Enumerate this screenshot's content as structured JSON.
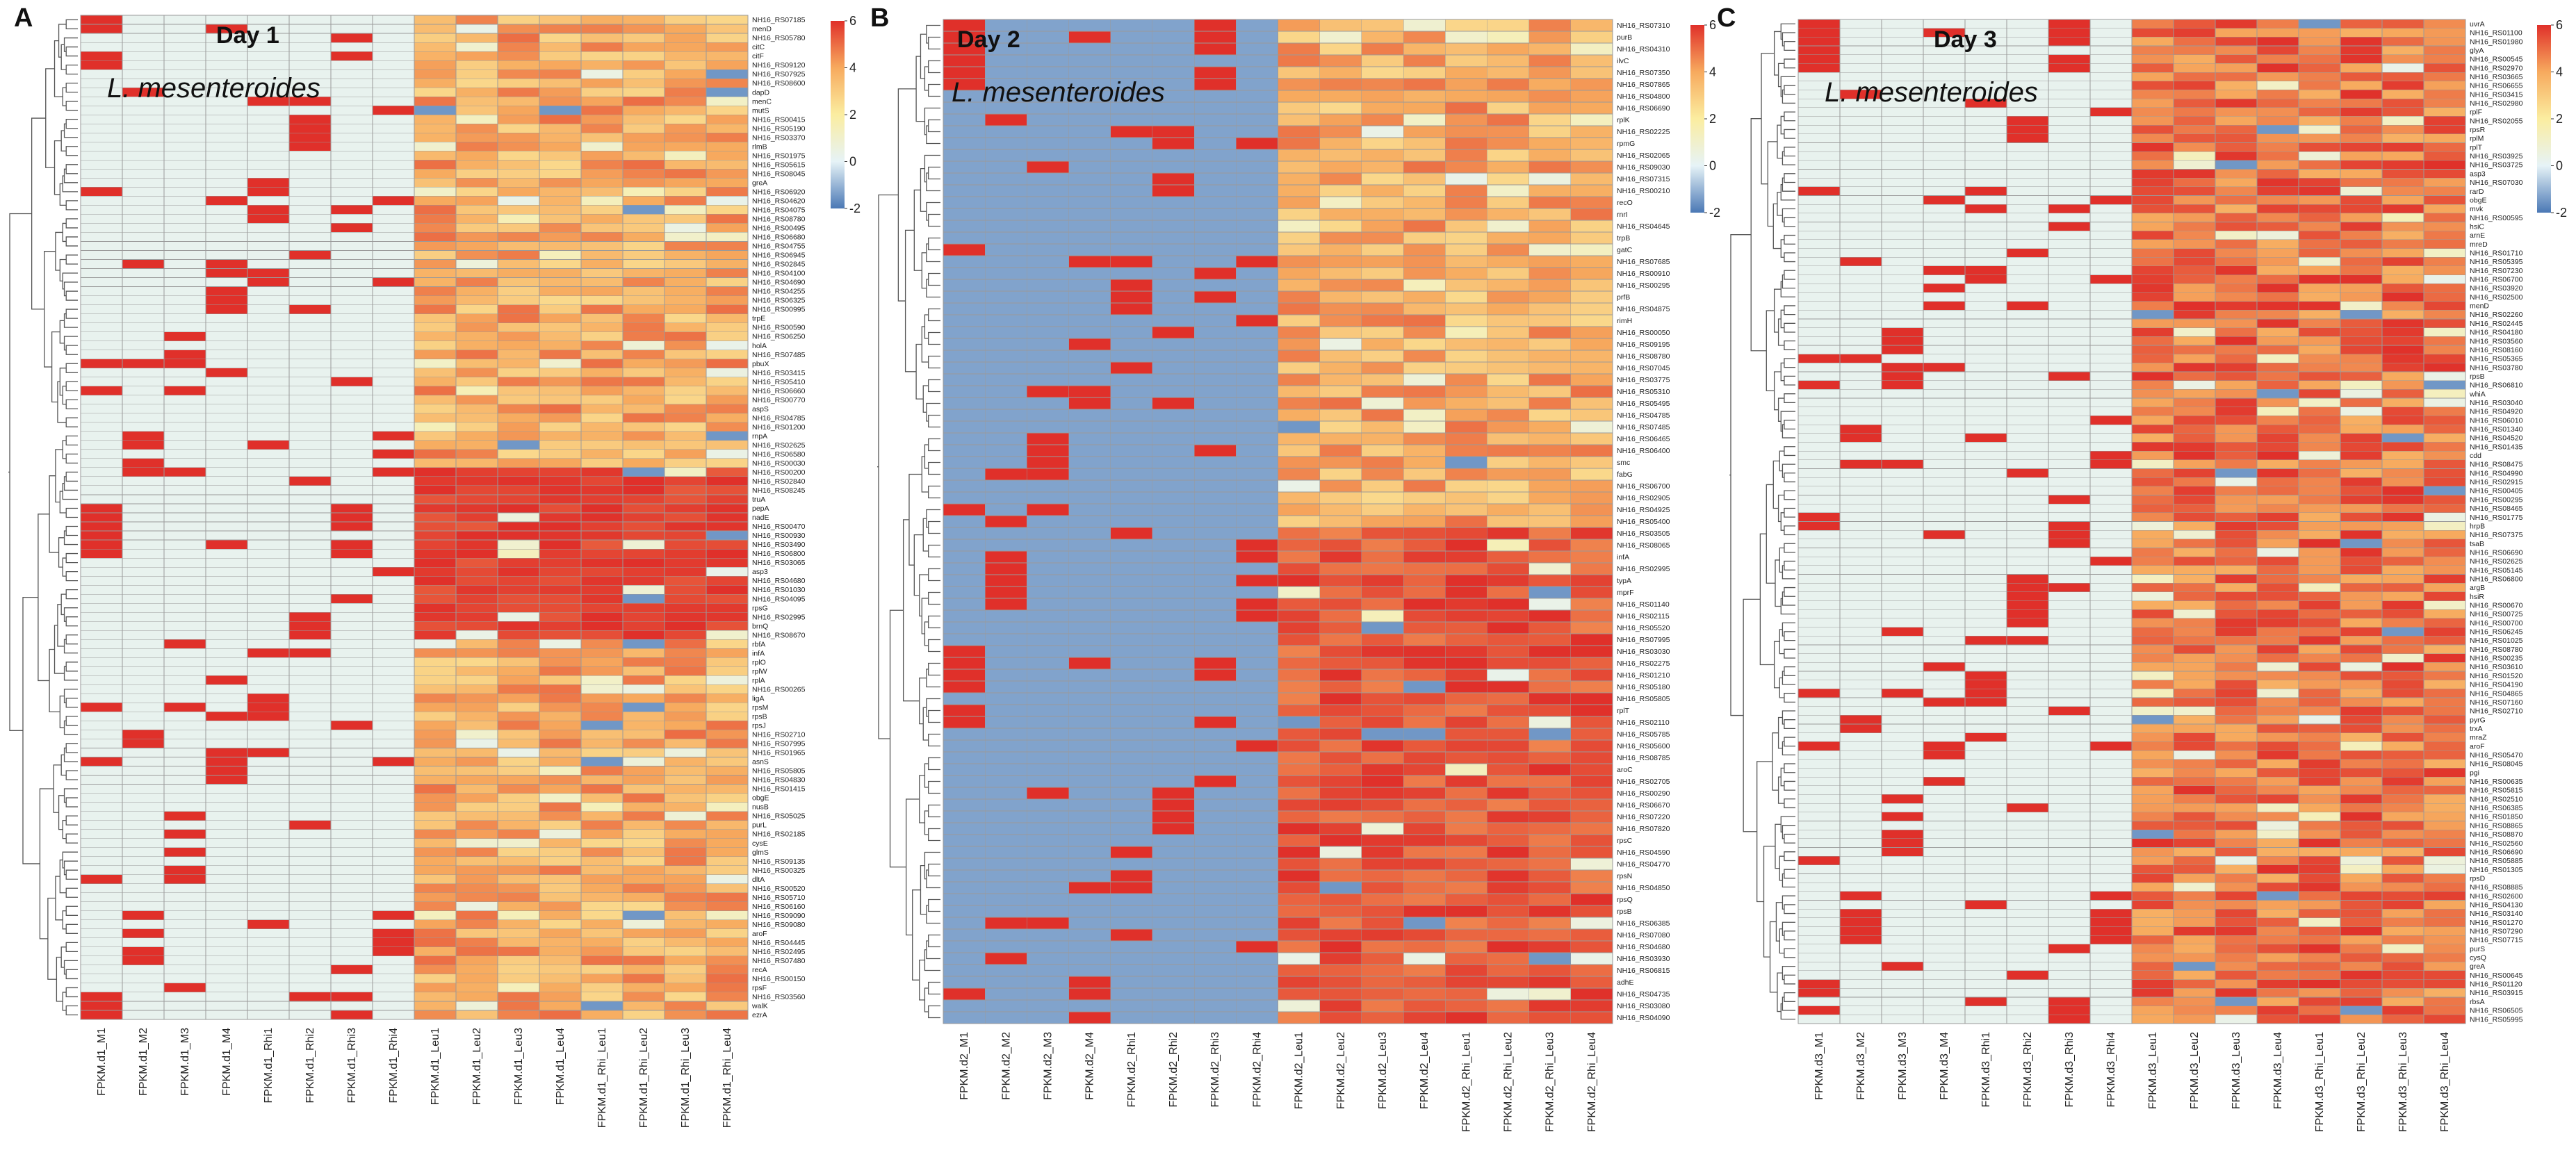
{
  "chart_data": [
    {
      "type": "heatmap",
      "panel": "A",
      "title": "Day 1",
      "species": "L. mesenteroides",
      "color_scale": {
        "min": -2,
        "max": 6,
        "ticks": [
          6,
          4,
          2,
          0,
          -2
        ],
        "colors": [
          "#4a78b5",
          "#e6f3f7",
          "#fbeda0",
          "#f7aa5e",
          "#e0302a"
        ]
      },
      "columns": [
        "FPKM.d1_M1",
        "FPKM.d1_M2",
        "FPKM.d1_M3",
        "FPKM.d1_M4",
        "FPKM.d1_Rhi1",
        "FPKM.d1_Rhi2",
        "FPKM.d1_Rhi3",
        "FPKM.d1_Rhi4",
        "FPKM.d1_Leu1",
        "FPKM.d1_Leu2",
        "FPKM.d1_Leu3",
        "FPKM.d1_Leu4",
        "FPKM.d1_Rhi_Leu1",
        "FPKM.d1_Rhi_Leu2",
        "FPKM.d1_Rhi_Leu3",
        "FPKM.d1_Rhi_Leu4"
      ],
      "rows": [
        "NH16_RS07185",
        "menD",
        "NH16_RS05780",
        "citC",
        "citF",
        "NH16_RS09120",
        "NH16_RS07925",
        "NH16_RS08600",
        "dapD",
        "menC",
        "mutS",
        "NH16_RS00415",
        "NH16_RS05190",
        "NH16_RS03370",
        "rlmB",
        "NH16_RS01975",
        "NH16_RS05615",
        "NH16_RS08045",
        "greA",
        "NH16_RS06920",
        "NH16_RS04620",
        "NH16_RS04075",
        "NH16_RS08780",
        "NH16_RS00495",
        "NH16_RS06680",
        "NH16_RS04755",
        "NH16_RS06945",
        "NH16_RS02845",
        "NH16_RS04100",
        "NH16_RS04690",
        "NH16_RS04255",
        "NH16_RS06325",
        "NH16_RS00995",
        "trpE",
        "NH16_RS00590",
        "NH16_RS06250",
        "holA",
        "NH16_RS07485",
        "pbuX",
        "NH16_RS03415",
        "NH16_RS05410",
        "NH16_RS06660",
        "NH16_RS00770",
        "aspS",
        "NH16_RS04785",
        "NH16_RS01200",
        "rnpA",
        "NH16_RS02625",
        "NH16_RS06580",
        "NH16_RS00030",
        "NH16_RS00200",
        "NH16_RS02840",
        "NH16_RS08245",
        "truA",
        "pepA",
        "nadE",
        "NH16_RS00470",
        "NH16_RS00930",
        "NH16_RS03490",
        "NH16_RS06800",
        "NH16_RS03065",
        "asp3",
        "NH16_RS04680",
        "NH16_RS01030",
        "NH16_RS04095",
        "rpsG",
        "NH16_RS02995",
        "brnQ",
        "NH16_RS08670",
        "rbfA",
        "infA",
        "rplO",
        "rplW",
        "rplA",
        "NH16_RS00265",
        "ligA",
        "rpsM",
        "rpsB",
        "rpsJ",
        "NH16_RS02710",
        "NH16_RS07995",
        "NH16_RS01965",
        "asnS",
        "NH16_RS05805",
        "NH16_RS04830",
        "NH16_RS01415",
        "obgE",
        "nusB",
        "NH16_RS05025",
        "purL",
        "NH16_RS02185",
        "cysE",
        "glmS",
        "NH16_RS09135",
        "NH16_RS00325",
        "dltA",
        "NH16_RS00520",
        "NH16_RS05710",
        "NH16_RS06160",
        "NH16_RS09090",
        "NH16_RS09080",
        "aroF",
        "NH16_RS04445",
        "NH16_RS02495",
        "NH16_RS07480",
        "recA",
        "NH16_RS00150",
        "rpsF",
        "NH16_RS03560",
        "walK",
        "ezrA"
      ]
    },
    {
      "type": "heatmap",
      "panel": "B",
      "title": "Day 2",
      "species": "L. mesenteroides",
      "color_scale": {
        "min": -2,
        "max": 6,
        "ticks": [
          6,
          4,
          2,
          0,
          -2
        ],
        "colors": [
          "#4a78b5",
          "#e6f3f7",
          "#fbeda0",
          "#f7aa5e",
          "#e0302a"
        ]
      },
      "columns": [
        "FPKM.d2_M1",
        "FPKM.d2_M2",
        "FPKM.d2_M3",
        "FPKM.d2_M4",
        "FPKM.d2_Rhi1",
        "FPKM.d2_Rhi2",
        "FPKM.d2_Rhi3",
        "FPKM.d2_Rhi4",
        "FPKM.d2_Leu1",
        "FPKM.d2_Leu2",
        "FPKM.d2_Leu3",
        "FPKM.d2_Leu4",
        "FPKM.d2_Rhi_Leu1",
        "FPKM.d2_Rhi_Leu2",
        "FPKM.d2_Rhi_Leu3",
        "FPKM.d2_Rhi_Leu4"
      ],
      "rows": [
        "NH16_RS07310",
        "purB",
        "NH16_RS04310",
        "ilvC",
        "NH16_RS07350",
        "NH16_RS07865",
        "NH16_RS04800",
        "NH16_RS06690",
        "rplK",
        "NH16_RS02225",
        "rpmG",
        "NH16_RS02065",
        "NH16_RS09030",
        "NH16_RS07315",
        "NH16_RS00210",
        "recO",
        "rnrI",
        "NH16_RS04645",
        "trpB",
        "gatC",
        "NH16_RS07685",
        "NH16_RS00910",
        "NH16_RS00295",
        "prfB",
        "NH16_RS04875",
        "rimH",
        "NH16_RS00050",
        "NH16_RS09195",
        "NH16_RS08780",
        "NH16_RS07045",
        "NH16_RS03775",
        "NH16_RS05310",
        "NH16_RS05495",
        "NH16_RS04785",
        "NH16_RS07485",
        "NH16_RS06465",
        "NH16_RS06400",
        "smc",
        "fabG",
        "NH16_RS06700",
        "NH16_RS02905",
        "NH16_RS04925",
        "NH16_RS05400",
        "NH16_RS03505",
        "NH16_RS08065",
        "infA",
        "NH16_RS02995",
        "typA",
        "mprF",
        "NH16_RS01140",
        "NH16_RS02115",
        "NH16_RS05520",
        "NH16_RS07995",
        "NH16_RS03030",
        "NH16_RS02275",
        "NH16_RS01210",
        "NH16_RS05180",
        "NH16_RS05805",
        "rplT",
        "NH16_RS02110",
        "NH16_RS05785",
        "NH16_RS05600",
        "NH16_RS08785",
        "aroC",
        "NH16_RS02705",
        "NH16_RS00290",
        "NH16_RS06670",
        "NH16_RS07220",
        "NH16_RS07820",
        "rpsC",
        "NH16_RS04590",
        "NH16_RS04770",
        "rpsN",
        "NH16_RS04850",
        "rpsQ",
        "rpsB",
        "NH16_RS06385",
        "NH16_RS07080",
        "NH16_RS04680",
        "NH16_RS03930",
        "NH16_RS06815",
        "adhE",
        "NH16_RS04735",
        "NH16_RS03080",
        "NH16_RS04090"
      ]
    },
    {
      "type": "heatmap",
      "panel": "C",
      "title": "Day 3",
      "species": "L. mesenteroides",
      "color_scale": {
        "min": -2,
        "max": 6,
        "ticks": [
          6,
          4,
          2,
          0,
          -2
        ],
        "colors": [
          "#4a78b5",
          "#e6f3f7",
          "#fbeda0",
          "#f7aa5e",
          "#e0302a"
        ]
      },
      "columns": [
        "FPKM.d3_M1",
        "FPKM.d3_M2",
        "FPKM.d3_M3",
        "FPKM.d3_M4",
        "FPKM.d3_Rhi1",
        "FPKM.d3_Rhi2",
        "FPKM.d3_Rhi3",
        "FPKM.d3_Rhi4",
        "FPKM.d3_Leu1",
        "FPKM.d3_Leu2",
        "FPKM.d3_Leu3",
        "FPKM.d3_Leu4",
        "FPKM.d3_Rhi_Leu1",
        "FPKM.d3_Rhi_Leu2",
        "FPKM.d3_Rhi_Leu3",
        "FPKM.d3_Rhi_Leu4"
      ],
      "rows": [
        "uvrA",
        "NH16_RS01100",
        "NH16_RS01980",
        "glyA",
        "NH16_RS00545",
        "NH16_RS02970",
        "NH16_RS03665",
        "NH16_RS06655",
        "NH16_RS03415",
        "NH16_RS02980",
        "rplF",
        "NH16_RS02055",
        "rpsR",
        "rplM",
        "rplT",
        "NH16_RS03925",
        "NH16_RS03725",
        "asp3",
        "NH16_RS07030",
        "rarD",
        "obgE",
        "mvk",
        "NH16_RS00595",
        "hsiC",
        "arnE",
        "mreD",
        "NH16_RS01710",
        "NH16_RS05395",
        "NH16_RS07230",
        "NH16_RS06700",
        "NH16_RS03920",
        "NH16_RS02500",
        "menD",
        "NH16_RS02260",
        "NH16_RS02445",
        "NH16_RS04180",
        "NH16_RS03560",
        "NH16_RS08160",
        "NH16_RS05365",
        "NH16_RS03780",
        "rpsB",
        "NH16_RS06810",
        "whiA",
        "NH16_RS03040",
        "NH16_RS04920",
        "NH16_RS06010",
        "NH16_RS01340",
        "NH16_RS04520",
        "NH16_RS01435",
        "cdd",
        "NH16_RS08475",
        "NH16_RS04990",
        "NH16_RS02915",
        "NH16_RS00405",
        "NH16_RS00295",
        "NH16_RS08465",
        "NH16_RS01775",
        "hrpB",
        "NH16_RS07375",
        "tsaB",
        "NH16_RS06690",
        "NH16_RS02625",
        "NH16_RS05145",
        "NH16_RS06800",
        "argB",
        "hsiR",
        "NH16_RS00670",
        "NH16_RS00725",
        "NH16_RS00700",
        "NH16_RS06245",
        "NH16_RS01025",
        "NH16_RS08780",
        "NH16_RS00235",
        "NH16_RS03610",
        "NH16_RS01520",
        "NH16_RS04190",
        "NH16_RS04865",
        "NH16_RS07160",
        "NH16_RS02710",
        "pyrG",
        "trxA",
        "mraZ",
        "aroF",
        "NH16_RS05470",
        "NH16_RS08045",
        "pgi",
        "NH16_RS00635",
        "NH16_RS05815",
        "NH16_RS02510",
        "NH16_RS06385",
        "NH16_RS01850",
        "NH16_RS08865",
        "NH16_RS08870",
        "NH16_RS02560",
        "NH16_RS06690",
        "NH16_RS05885",
        "NH16_RS01305",
        "rpsD",
        "NH16_RS08885",
        "NH16_RS02600",
        "NH16_RS04130",
        "NH16_RS03140",
        "NH16_RS01270",
        "NH16_RS07290",
        "NH16_RS07715",
        "purS",
        "cysQ",
        "greA",
        "NH16_RS00645",
        "NH16_RS01120",
        "NH16_RS03915",
        "rbsA",
        "NH16_RS06505",
        "NH16_RS05995"
      ]
    }
  ]
}
